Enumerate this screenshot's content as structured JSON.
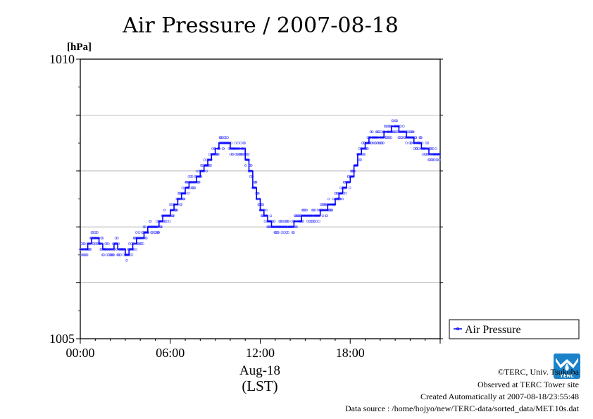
{
  "chart_data": {
    "type": "line",
    "title": "Air Pressure / 2007-08-18",
    "ylabel": "[hPa]",
    "ylim": [
      1005,
      1010
    ],
    "yticks": [
      1005,
      1006,
      1007,
      1008,
      1009,
      1010
    ],
    "ytick_labels": [
      "1005",
      "",
      "",
      "",
      "",
      "1010"
    ],
    "xlim": [
      0,
      24
    ],
    "xticks": [
      0,
      6,
      12,
      18
    ],
    "xtick_labels": [
      "00:00",
      "06:00",
      "12:00",
      "18:00"
    ],
    "xlabel_date": "Aug-18",
    "xlabel_tz": "(LST)",
    "grid": "horizontal",
    "legend_position": "right",
    "series": [
      {
        "name": "Air Pressure",
        "color": "#0000ff",
        "x": [
          0.0,
          0.25,
          0.5,
          0.75,
          1.0,
          1.25,
          1.5,
          1.75,
          2.0,
          2.25,
          2.5,
          2.75,
          3.0,
          3.25,
          3.5,
          3.75,
          4.0,
          4.25,
          4.5,
          4.75,
          5.0,
          5.25,
          5.5,
          5.75,
          6.0,
          6.25,
          6.5,
          6.75,
          7.0,
          7.25,
          7.5,
          7.75,
          8.0,
          8.25,
          8.5,
          8.75,
          9.0,
          9.25,
          9.5,
          9.75,
          10.0,
          10.25,
          10.5,
          10.75,
          11.0,
          11.25,
          11.5,
          11.75,
          12.0,
          12.25,
          12.5,
          12.75,
          13.0,
          13.25,
          13.5,
          13.75,
          14.0,
          14.25,
          14.5,
          14.75,
          15.0,
          15.25,
          15.5,
          15.75,
          16.0,
          16.25,
          16.5,
          16.75,
          17.0,
          17.25,
          17.5,
          17.75,
          18.0,
          18.25,
          18.5,
          18.75,
          19.0,
          19.25,
          19.5,
          19.75,
          20.0,
          20.25,
          20.5,
          20.75,
          21.0,
          21.25,
          21.5,
          21.75,
          22.0,
          22.25,
          22.5,
          22.75,
          23.0,
          23.25,
          23.5,
          23.75
        ],
        "values": [
          1006.6,
          1006.6,
          1006.7,
          1006.8,
          1006.8,
          1006.7,
          1006.6,
          1006.6,
          1006.6,
          1006.7,
          1006.6,
          1006.6,
          1006.5,
          1006.6,
          1006.7,
          1006.8,
          1006.8,
          1006.9,
          1007.0,
          1007.0,
          1007.0,
          1007.1,
          1007.2,
          1007.2,
          1007.3,
          1007.4,
          1007.5,
          1007.6,
          1007.7,
          1007.8,
          1007.8,
          1007.9,
          1008.0,
          1008.1,
          1008.2,
          1008.3,
          1008.4,
          1008.5,
          1008.5,
          1008.5,
          1008.4,
          1008.4,
          1008.4,
          1008.4,
          1008.2,
          1008.0,
          1007.7,
          1007.5,
          1007.3,
          1007.2,
          1007.1,
          1007.0,
          1007.0,
          1007.0,
          1007.0,
          1007.0,
          1007.0,
          1007.1,
          1007.1,
          1007.2,
          1007.2,
          1007.2,
          1007.2,
          1007.2,
          1007.3,
          1007.3,
          1007.4,
          1007.4,
          1007.5,
          1007.6,
          1007.7,
          1007.8,
          1007.9,
          1008.1,
          1008.3,
          1008.4,
          1008.5,
          1008.6,
          1008.6,
          1008.6,
          1008.6,
          1008.7,
          1008.7,
          1008.8,
          1008.8,
          1008.7,
          1008.7,
          1008.6,
          1008.6,
          1008.5,
          1008.5,
          1008.4,
          1008.4,
          1008.3,
          1008.3,
          1008.3
        ]
      }
    ]
  },
  "legend": {
    "label": "Air Pressure"
  },
  "footer": {
    "copyright": "©TERC, Univ. Tsukuba",
    "observed": "Observed at TERC Tower site",
    "created": "Created Automatically at 2007-08-18/23:55:48",
    "source": "Data source : /home/hojyo/new/TERC-data/sorted_data/MET.10s.dat"
  },
  "logo": {
    "text": "TERC",
    "color": "#1b82c9"
  }
}
